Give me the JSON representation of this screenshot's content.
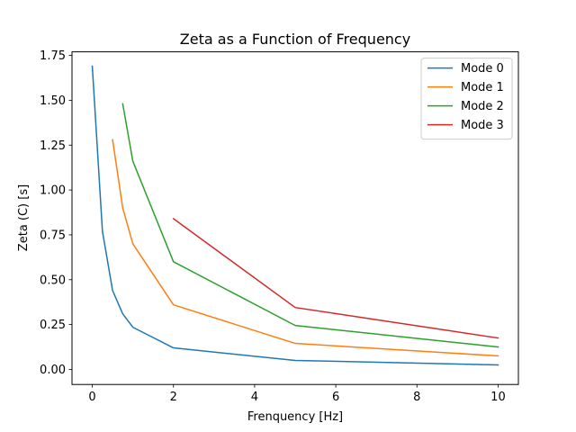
{
  "chart_data": {
    "type": "line",
    "title": "Zeta as a Function of Frequency",
    "xlabel": "Frenquency [Hz]",
    "ylabel": "Zeta (C) [s]",
    "xlim": [
      -0.5,
      10.5
    ],
    "ylim": [
      -0.084,
      1.77
    ],
    "xticks": [
      0,
      2,
      4,
      6,
      8,
      10
    ],
    "xtick_labels": [
      "0",
      "2",
      "4",
      "6",
      "8",
      "10"
    ],
    "yticks": [
      0.0,
      0.25,
      0.5,
      0.75,
      1.0,
      1.25,
      1.5,
      1.75
    ],
    "ytick_labels": [
      "0.00",
      "0.25",
      "0.50",
      "0.75",
      "1.00",
      "1.25",
      "1.50",
      "1.75"
    ],
    "grid": false,
    "legend_position": "top-right",
    "series": [
      {
        "name": "Mode 0",
        "color": "#1f77b4",
        "x": [
          0,
          0.25,
          0.5,
          0.75,
          1,
          2,
          5,
          10
        ],
        "y": [
          1.69,
          0.77,
          0.44,
          0.31,
          0.235,
          0.12,
          0.05,
          0.025
        ]
      },
      {
        "name": "Mode 1",
        "color": "#ff7f0e",
        "x": [
          0.5,
          0.75,
          1,
          2,
          5,
          10
        ],
        "y": [
          1.28,
          0.9,
          0.7,
          0.36,
          0.145,
          0.075
        ]
      },
      {
        "name": "Mode 2",
        "color": "#2ca02c",
        "x": [
          0.75,
          1,
          2,
          5,
          10
        ],
        "y": [
          1.48,
          1.16,
          0.6,
          0.245,
          0.125
        ]
      },
      {
        "name": "Mode 3",
        "color": "#d62728",
        "x": [
          2,
          5,
          10
        ],
        "y": [
          0.84,
          0.345,
          0.175
        ]
      }
    ]
  }
}
